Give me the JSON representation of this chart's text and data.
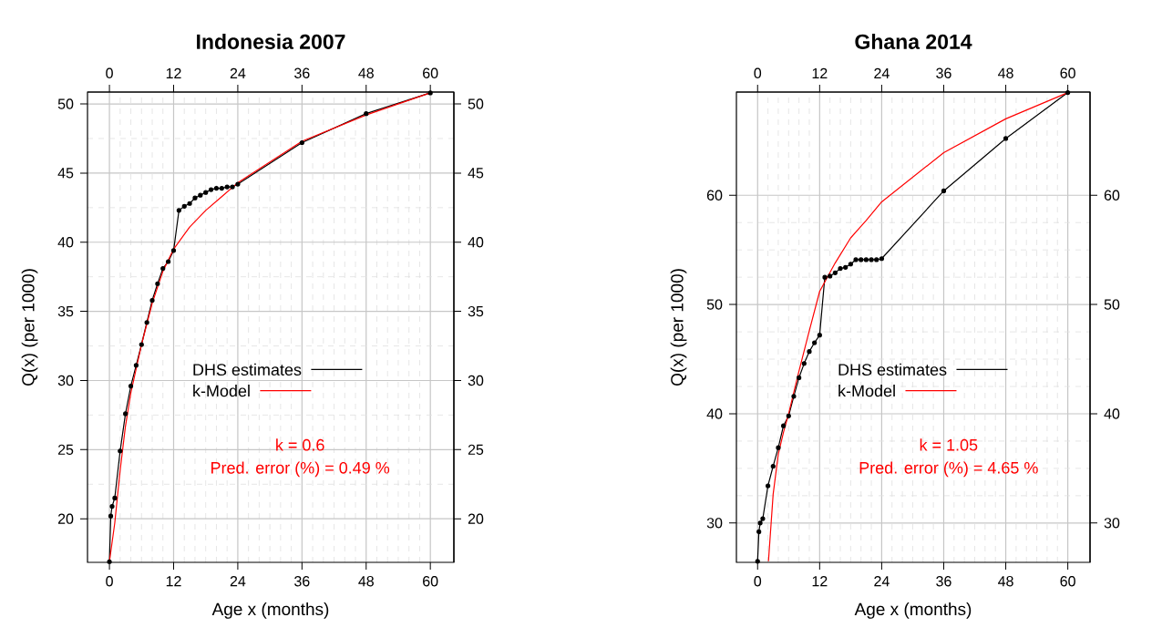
{
  "chart_data": [
    {
      "type": "line",
      "title": "Indonesia 2007",
      "xlabel": "Age x (months)",
      "ylabel": "Q(x) (per 1000)",
      "xlim": [
        -4.1,
        64.4
      ],
      "xticks": [
        0,
        12,
        24,
        36,
        48,
        60
      ],
      "x2lim": [
        -4.1,
        64.4
      ],
      "x2ticks": [
        0,
        12,
        24,
        36,
        48,
        60
      ],
      "ylim": [
        16.85,
        50.86
      ],
      "yticks": [
        20,
        25,
        30,
        35,
        40,
        45,
        50
      ],
      "y2lim": [
        16.85,
        50.86
      ],
      "y2ticks": [
        20,
        25,
        30,
        35,
        40,
        45,
        50
      ],
      "grid": true,
      "legend": "right",
      "series": [
        {
          "name": "DHS estimates",
          "color": "#000000",
          "marker": "circle",
          "x": [
            0,
            0.25,
            0.5,
            1,
            2,
            3,
            4,
            5,
            6,
            7,
            8,
            9,
            10,
            11,
            12,
            13,
            14,
            15,
            16,
            17,
            18,
            19,
            20,
            21,
            22,
            23,
            24,
            36,
            48,
            60
          ],
          "values": [
            16.9,
            20.2,
            20.9,
            21.5,
            24.9,
            27.6,
            29.6,
            31.1,
            32.6,
            34.2,
            35.8,
            37.0,
            38.1,
            38.6,
            39.4,
            42.3,
            42.6,
            42.8,
            43.2,
            43.4,
            43.6,
            43.8,
            43.9,
            43.9,
            44.0,
            44.0,
            44.2,
            47.2,
            49.3,
            50.8
          ]
        },
        {
          "name": "k-Model",
          "color": "#ff0000",
          "marker": "none",
          "x": [
            0,
            1,
            2,
            3,
            4,
            6,
            8,
            10,
            12,
            15,
            18,
            21,
            24,
            36,
            48,
            60
          ],
          "values": [
            16.9,
            19.7,
            23.5,
            26.7,
            29.1,
            32.6,
            35.6,
            37.9,
            39.5,
            41.1,
            42.3,
            43.3,
            44.3,
            47.3,
            49.2,
            50.8
          ]
        }
      ],
      "annotations": [
        "k = 0.6",
        "Pred. error (%) = 0.49 %"
      ]
    },
    {
      "type": "line",
      "title": "Ghana 2014",
      "xlabel": "Age x (months)",
      "ylabel": "Q(x) (per 1000)",
      "xlim": [
        -4.1,
        64.3
      ],
      "xticks": [
        0,
        12,
        24,
        36,
        48,
        60
      ],
      "x2lim": [
        -4.1,
        64.3
      ],
      "x2ticks": [
        0,
        12,
        24,
        36,
        48,
        60
      ],
      "ylim": [
        26.4,
        69.45
      ],
      "yticks": [
        30,
        40,
        50,
        60
      ],
      "y2lim": [
        26.4,
        69.45
      ],
      "y2ticks": [
        30,
        40,
        50,
        60
      ],
      "grid": true,
      "legend": "right",
      "series": [
        {
          "name": "DHS estimates",
          "color": "#000000",
          "marker": "circle",
          "x": [
            0,
            0.25,
            0.5,
            1,
            2,
            3,
            4,
            5,
            6,
            7,
            8,
            9,
            10,
            11,
            12,
            13,
            14,
            15,
            16,
            17,
            18,
            19,
            20,
            21,
            22,
            23,
            24,
            36,
            48,
            60
          ],
          "values": [
            26.5,
            29.2,
            30.0,
            30.4,
            33.4,
            35.2,
            36.9,
            38.9,
            39.8,
            41.6,
            43.3,
            44.6,
            45.7,
            46.5,
            47.2,
            52.5,
            52.6,
            52.9,
            53.3,
            53.4,
            53.7,
            54.1,
            54.1,
            54.1,
            54.1,
            54.1,
            54.2,
            60.4,
            65.2,
            69.4
          ]
        },
        {
          "name": "k-Model",
          "color": "#ff0000",
          "marker": "none",
          "x": [
            2.1,
            3,
            4,
            5,
            6,
            8,
            10,
            12,
            15,
            18,
            21,
            24,
            36,
            48,
            60
          ],
          "values": [
            26.5,
            32.6,
            36.3,
            38.3,
            40.0,
            43.9,
            47.6,
            51.2,
            53.8,
            56.1,
            57.7,
            59.4,
            63.9,
            67.0,
            69.4
          ]
        }
      ],
      "annotations": [
        "k = 1.05",
        "Pred. error (%) = 4.65 %"
      ]
    }
  ]
}
